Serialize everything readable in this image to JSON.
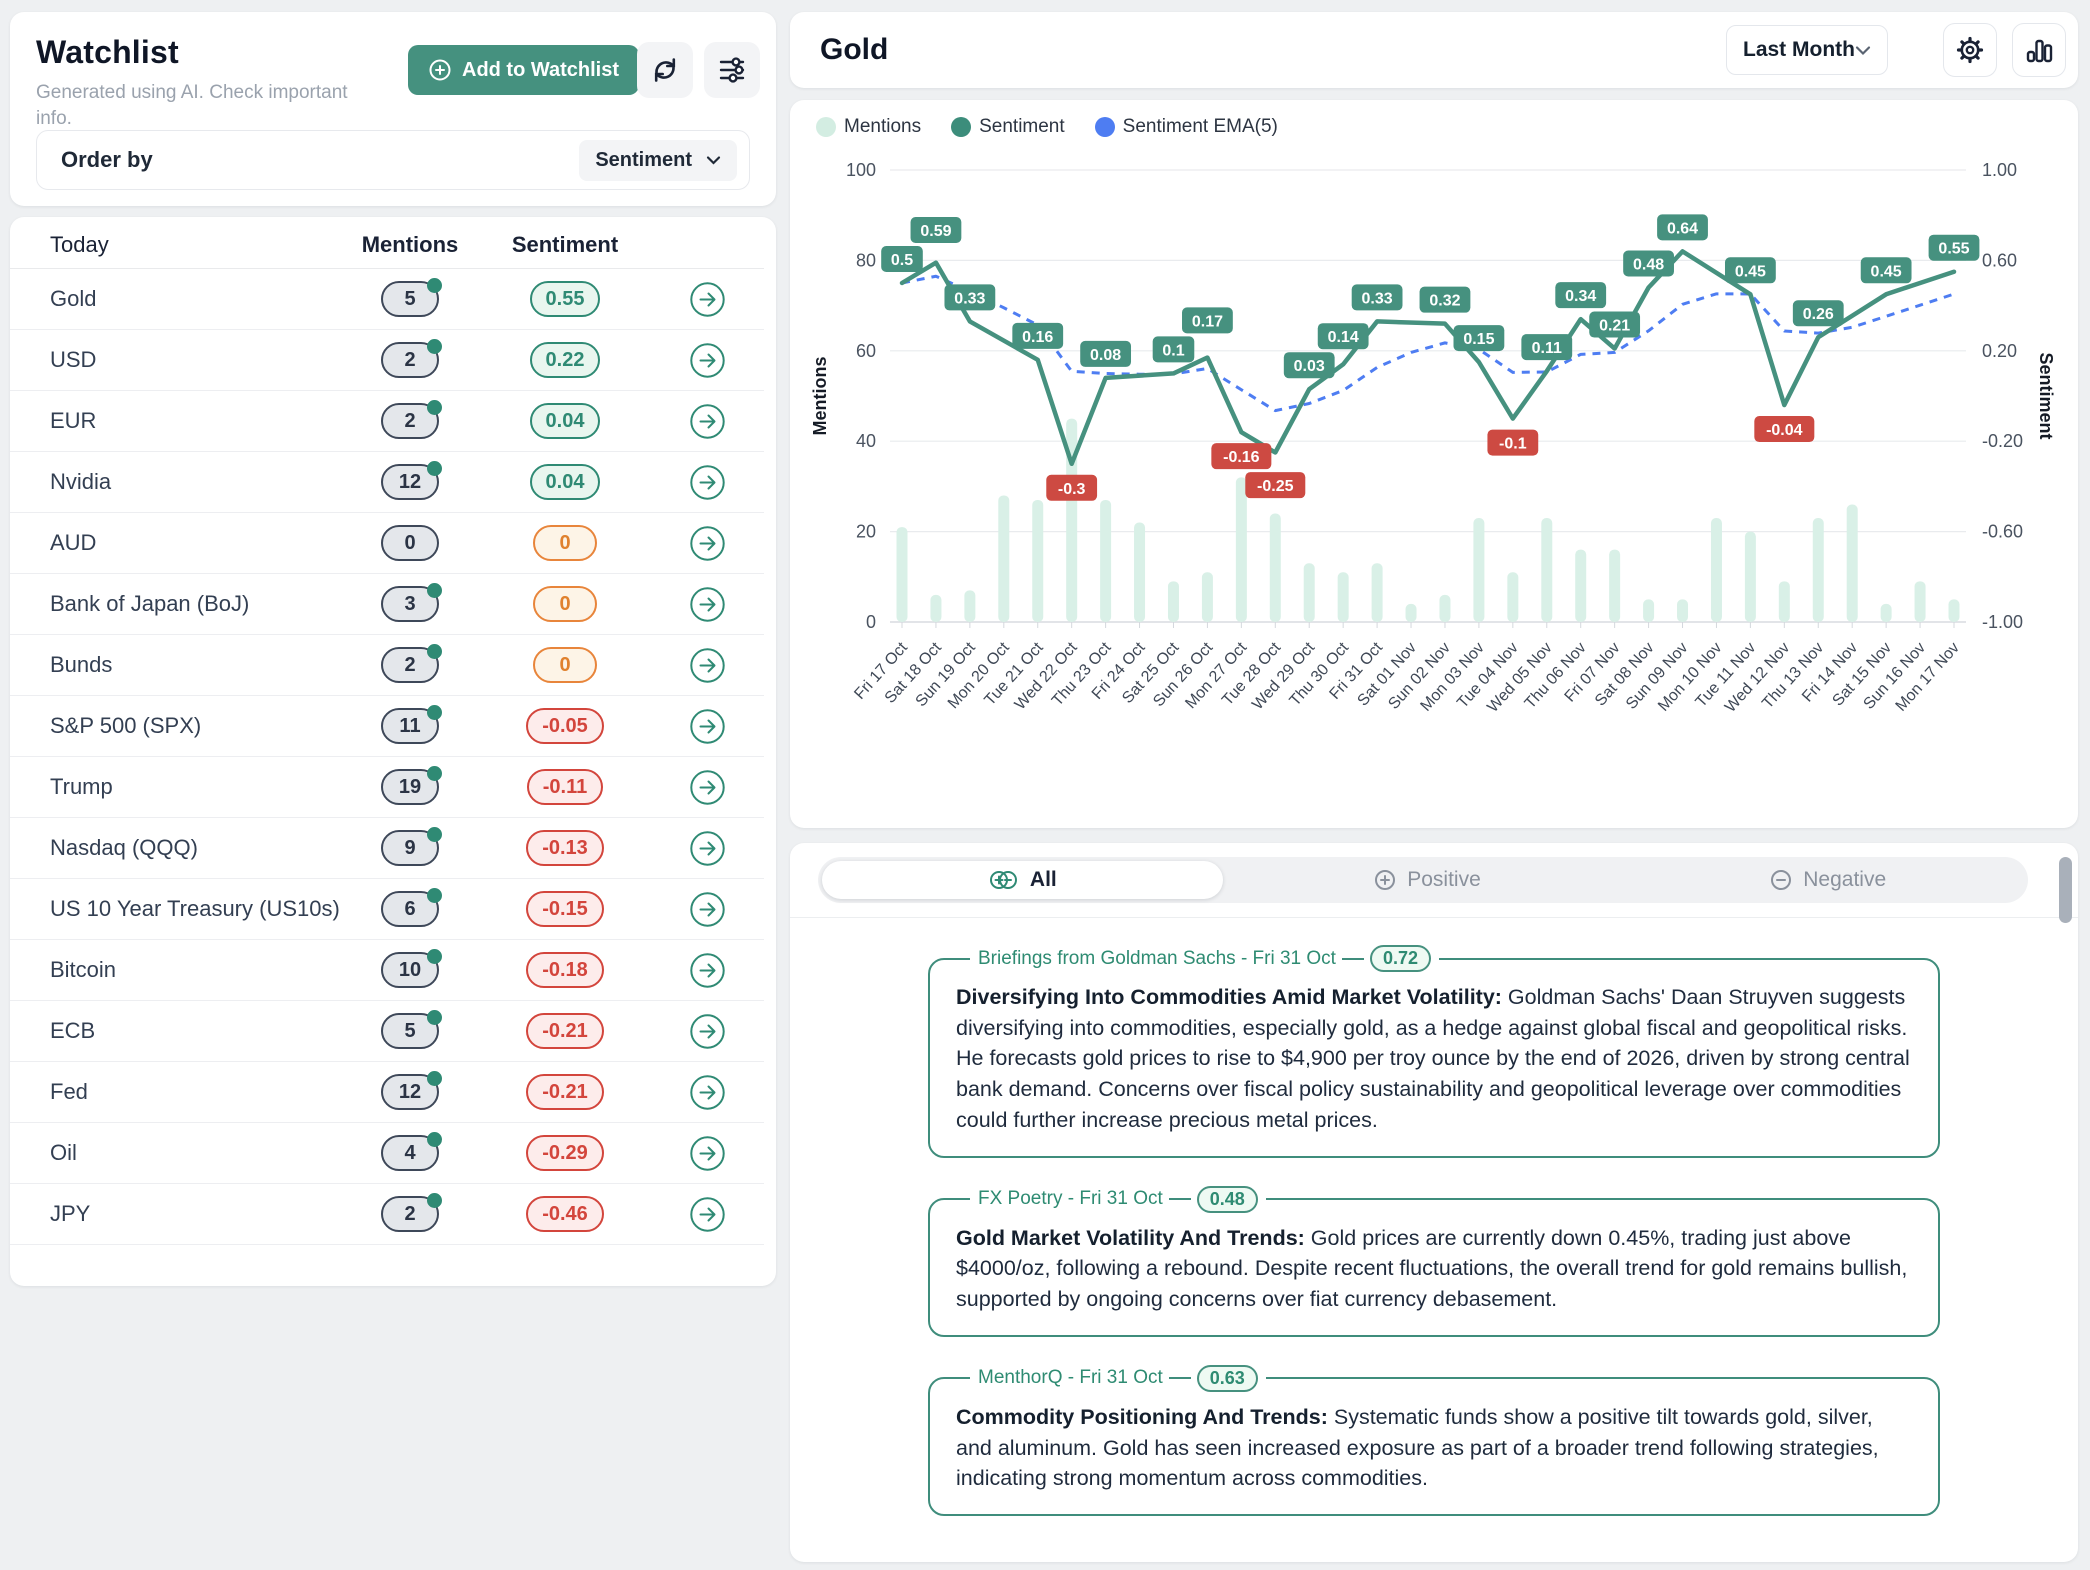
{
  "colors": {
    "accent_teal": "#45917f",
    "mint": "#d9f0e7",
    "ema_blue": "#4e7df2",
    "label_red": "#cd4a42",
    "pos_green": "#2f8a74",
    "zero_orange": "#e8853b",
    "neg_red": "#d3453c"
  },
  "watchlist": {
    "title": "Watchlist",
    "subtitle": "Generated using AI. Check important info.",
    "add_button": "Add to Watchlist",
    "order_by_label": "Order by",
    "order_by_value": "Sentiment",
    "columns": {
      "asset": "Today",
      "mentions": "Mentions",
      "sentiment": "Sentiment"
    },
    "rows": [
      {
        "name": "Gold",
        "mentions": "5",
        "sentiment": "0.55",
        "tone": "pos",
        "dot": true
      },
      {
        "name": "USD",
        "mentions": "2",
        "sentiment": "0.22",
        "tone": "pos",
        "dot": true
      },
      {
        "name": "EUR",
        "mentions": "2",
        "sentiment": "0.04",
        "tone": "pos",
        "dot": true
      },
      {
        "name": "Nvidia",
        "mentions": "12",
        "sentiment": "0.04",
        "tone": "pos",
        "dot": true
      },
      {
        "name": "AUD",
        "mentions": "0",
        "sentiment": "0",
        "tone": "zero",
        "dot": false
      },
      {
        "name": "Bank of Japan (BoJ)",
        "mentions": "3",
        "sentiment": "0",
        "tone": "zero",
        "dot": true
      },
      {
        "name": "Bunds",
        "mentions": "2",
        "sentiment": "0",
        "tone": "zero",
        "dot": true
      },
      {
        "name": "S&P 500 (SPX)",
        "mentions": "11",
        "sentiment": "-0.05",
        "tone": "neg",
        "dot": true
      },
      {
        "name": "Trump",
        "mentions": "19",
        "sentiment": "-0.11",
        "tone": "neg",
        "dot": true
      },
      {
        "name": "Nasdaq (QQQ)",
        "mentions": "9",
        "sentiment": "-0.13",
        "tone": "neg",
        "dot": true
      },
      {
        "name": "US 10 Year Treasury (US10s)",
        "mentions": "6",
        "sentiment": "-0.15",
        "tone": "neg",
        "dot": true
      },
      {
        "name": "Bitcoin",
        "mentions": "10",
        "sentiment": "-0.18",
        "tone": "neg",
        "dot": true
      },
      {
        "name": "ECB",
        "mentions": "5",
        "sentiment": "-0.21",
        "tone": "neg",
        "dot": true
      },
      {
        "name": "Fed",
        "mentions": "12",
        "sentiment": "-0.21",
        "tone": "neg",
        "dot": true
      },
      {
        "name": "Oil",
        "mentions": "4",
        "sentiment": "-0.29",
        "tone": "neg",
        "dot": true
      },
      {
        "name": "JPY",
        "mentions": "2",
        "sentiment": "-0.46",
        "tone": "neg",
        "dot": true
      }
    ]
  },
  "panel": {
    "title": "Gold",
    "range_value": "Last Month"
  },
  "chart_data": {
    "type": "line+bar",
    "title": "Gold mentions and sentiment, last month",
    "legend": [
      "Mentions",
      "Sentiment",
      "Sentiment EMA(5)"
    ],
    "x": [
      "Fri 17 Oct",
      "Sat 18 Oct",
      "Sun 19 Oct",
      "Mon 20 Oct",
      "Tue 21 Oct",
      "Wed 22 Oct",
      "Thu 23 Oct",
      "Fri 24 Oct",
      "Sat 25 Oct",
      "Sun 26 Oct",
      "Mon 27 Oct",
      "Tue 28 Oct",
      "Wed 29 Oct",
      "Thu 30 Oct",
      "Fri 31 Oct",
      "Sat 01 Nov",
      "Sun 02 Nov",
      "Mon 03 Nov",
      "Tue 04 Nov",
      "Wed 05 Nov",
      "Thu 06 Nov",
      "Fri 07 Nov",
      "Sat 08 Nov",
      "Sun 09 Nov",
      "Mon 10 Nov",
      "Tue 11 Nov",
      "Wed 12 Nov",
      "Thu 13 Nov",
      "Fri 14 Nov",
      "Sat 15 Nov",
      "Sun 16 Nov",
      "Mon 17 Nov"
    ],
    "series": [
      {
        "name": "Mentions",
        "type": "bar",
        "axis": "left",
        "values": [
          21,
          6,
          7,
          28,
          27,
          45,
          27,
          22,
          9,
          11,
          32,
          24,
          13,
          11,
          13,
          4,
          6,
          23,
          11,
          23,
          16,
          16,
          5,
          5,
          23,
          20,
          9,
          23,
          26,
          4,
          9,
          5
        ]
      },
      {
        "name": "Sentiment",
        "type": "line",
        "axis": "right",
        "values": [
          0.5,
          0.59,
          0.33,
          null,
          0.16,
          -0.3,
          0.08,
          null,
          0.1,
          0.17,
          -0.16,
          -0.25,
          0.03,
          0.14,
          0.33,
          null,
          0.32,
          0.15,
          -0.1,
          0.11,
          0.34,
          0.21,
          0.48,
          0.64,
          null,
          0.45,
          -0.04,
          0.26,
          null,
          0.45,
          null,
          0.55
        ],
        "point_labels": [
          "0.5",
          "0.59",
          "0.33",
          "0.16",
          "-0.3",
          "0.08",
          "0.1",
          "0.17",
          "-0.16",
          "-0.25",
          "0.03",
          "0.14",
          "0.33",
          "0.32",
          "0.15",
          "-0.1",
          "0.11",
          "0.34",
          "0.21",
          "0.48",
          "0.64",
          "0.45",
          "-0.04",
          "0.26",
          "0.45",
          "0.55"
        ]
      },
      {
        "name": "Sentiment EMA(5)",
        "type": "line-dashed",
        "axis": "right",
        "derived": "EMA(5) of Sentiment",
        "ema_period": 5
      }
    ],
    "left_axis": {
      "label": "Mentions",
      "ticks": [
        0,
        20,
        40,
        60,
        80,
        100
      ],
      "range": [
        0,
        100
      ]
    },
    "right_axis": {
      "label": "Sentiment",
      "ticks": [
        "-1.00",
        "-0.60",
        "-0.20",
        "0.20",
        "0.60",
        "1.00"
      ],
      "range": [
        -1,
        1
      ]
    },
    "grid": true,
    "legend_position": "top-left"
  },
  "news": {
    "tabs": [
      {
        "label": "All"
      },
      {
        "label": "Positive"
      },
      {
        "label": "Negative"
      }
    ],
    "items": [
      {
        "source_date": "Briefings from Goldman Sachs - Fri 31 Oct",
        "score": "0.72",
        "lead": "Diversifying Into Commodities Amid Market Volatility:",
        "body": " Goldman Sachs' Daan Struyven suggests diversifying into commodities, especially gold, as a hedge against global fiscal and geopolitical risks. He forecasts gold prices to rise to $4,900 per troy ounce by the end of 2026, driven by strong central bank demand. Concerns over fiscal policy sustainability and geopolitical leverage over commodities could further increase precious metal prices."
      },
      {
        "source_date": "FX Poetry - Fri 31 Oct",
        "score": "0.48",
        "lead": "Gold Market Volatility And Trends:",
        "body": " Gold prices are currently down 0.45%, trading just above $4000/oz, following a rebound. Despite recent fluctuations, the overall trend for gold remains bullish, supported by ongoing concerns over fiat currency debasement."
      },
      {
        "source_date": "MenthorQ - Fri 31 Oct",
        "score": "0.63",
        "lead": "Commodity Positioning And Trends:",
        "body": " Systematic funds show a positive tilt towards gold, silver, and aluminum. Gold has seen increased exposure as part of a broader trend following strategies, indicating strong momentum across commodities."
      }
    ]
  }
}
